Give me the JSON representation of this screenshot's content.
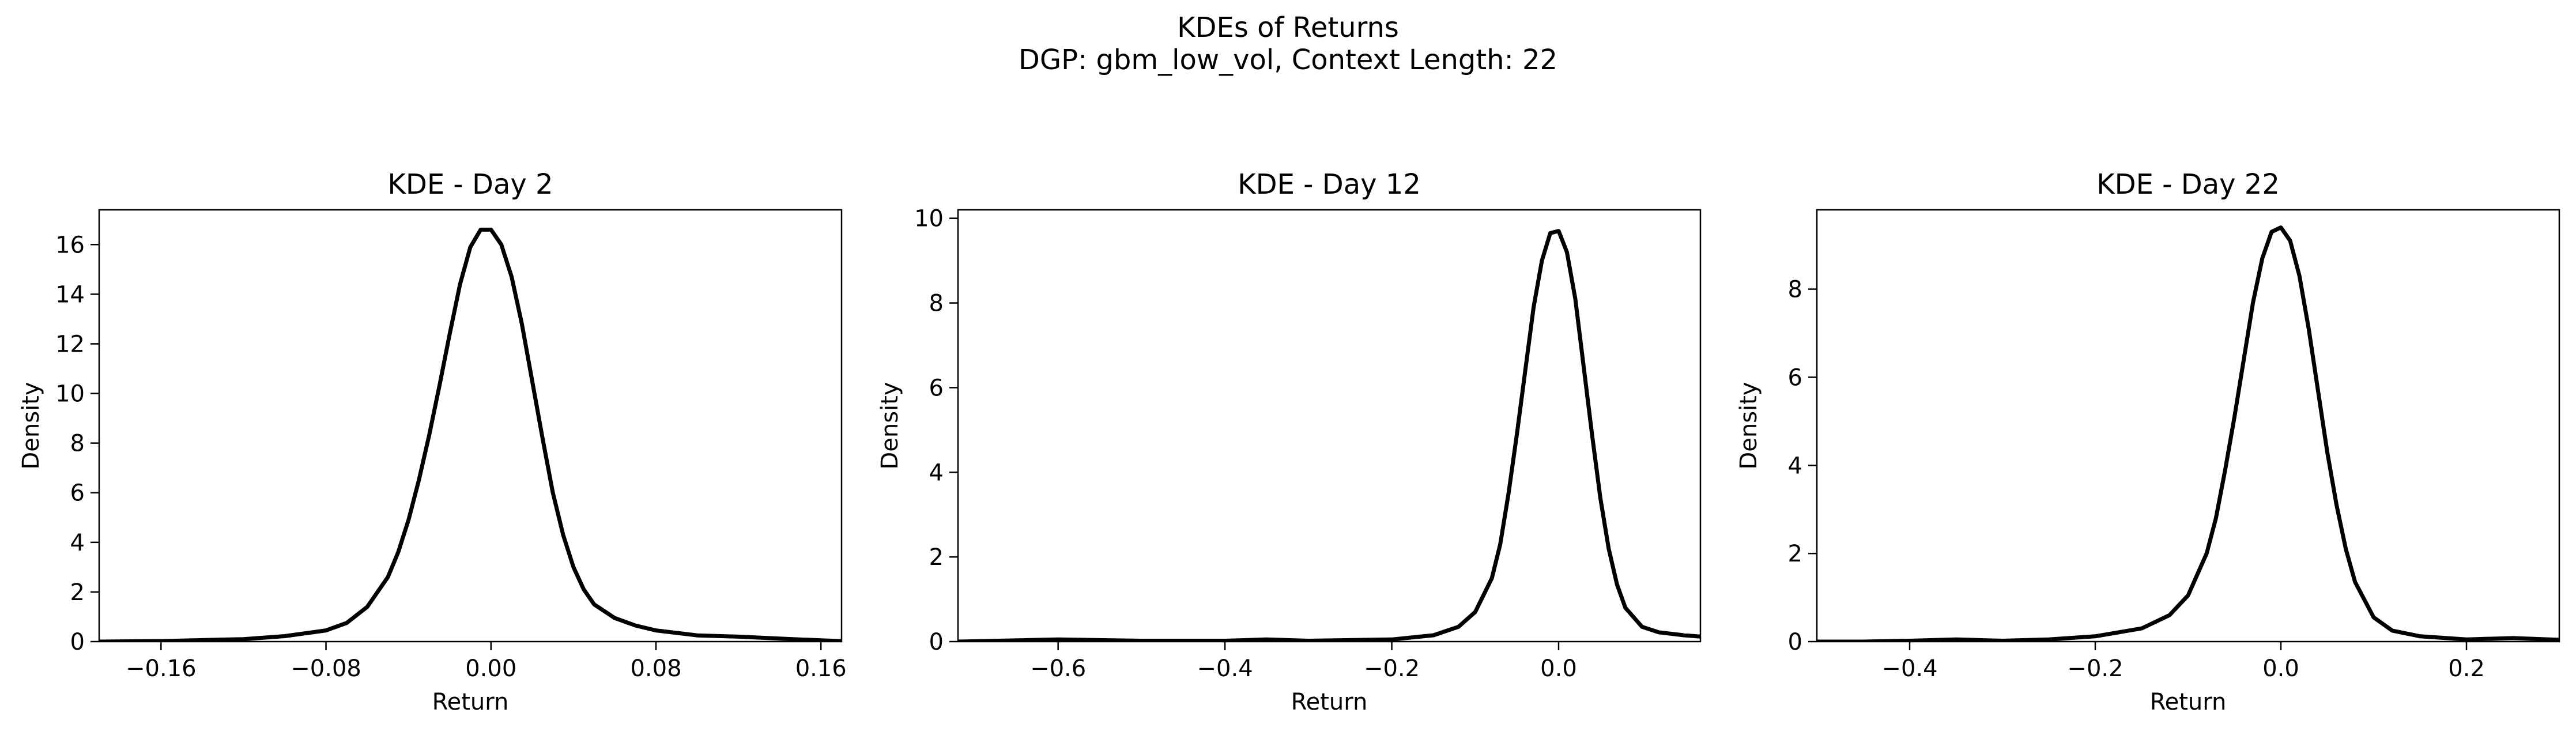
{
  "suptitle": {
    "line1": "KDEs of Returns",
    "line2": "DGP: gbm_low_vol, Context Length: 22"
  },
  "chart_data": [
    {
      "type": "line",
      "title": "KDE - Day 2",
      "xlabel": "Return",
      "ylabel": "Density",
      "xlim": [
        -0.19,
        0.17
      ],
      "ylim": [
        0,
        17.4
      ],
      "xticks": [
        -0.16,
        -0.08,
        0.0,
        0.08,
        0.16
      ],
      "xtick_labels": [
        "−0.16",
        "−0.08",
        "0.00",
        "0.08",
        "0.16"
      ],
      "yticks": [
        0,
        2,
        4,
        6,
        8,
        10,
        12,
        14,
        16
      ],
      "ytick_labels": [
        "0",
        "2",
        "4",
        "6",
        "8",
        "10",
        "12",
        "14",
        "16"
      ],
      "grid": false,
      "series": [
        {
          "color": "#000000",
          "x": [
            -0.19,
            -0.16,
            -0.12,
            -0.1,
            -0.08,
            -0.07,
            -0.06,
            -0.05,
            -0.045,
            -0.04,
            -0.035,
            -0.03,
            -0.025,
            -0.02,
            -0.015,
            -0.01,
            -0.005,
            0.0,
            0.005,
            0.01,
            0.015,
            0.02,
            0.025,
            0.03,
            0.035,
            0.04,
            0.045,
            0.05,
            0.06,
            0.07,
            0.08,
            0.1,
            0.12,
            0.14,
            0.16,
            0.17
          ],
          "y": [
            0.0,
            0.02,
            0.1,
            0.22,
            0.45,
            0.75,
            1.4,
            2.6,
            3.6,
            4.9,
            6.5,
            8.3,
            10.3,
            12.4,
            14.4,
            15.9,
            16.6,
            16.6,
            16.0,
            14.7,
            12.8,
            10.5,
            8.2,
            6.0,
            4.3,
            3.0,
            2.1,
            1.5,
            0.95,
            0.65,
            0.45,
            0.25,
            0.2,
            0.12,
            0.05,
            0.02
          ]
        }
      ]
    },
    {
      "type": "line",
      "title": "KDE - Day 12",
      "xlabel": "Return",
      "ylabel": "Density",
      "xlim": [
        -0.72,
        0.17
      ],
      "ylim": [
        0,
        10.2
      ],
      "xticks": [
        -0.6,
        -0.4,
        -0.2,
        0.0
      ],
      "xtick_labels": [
        "−0.6",
        "−0.4",
        "−0.2",
        "0.0"
      ],
      "yticks": [
        0,
        2,
        4,
        6,
        8,
        10
      ],
      "ytick_labels": [
        "0",
        "2",
        "4",
        "6",
        "8",
        "10"
      ],
      "grid": false,
      "series": [
        {
          "color": "#000000",
          "x": [
            -0.72,
            -0.6,
            -0.5,
            -0.4,
            -0.35,
            -0.3,
            -0.2,
            -0.15,
            -0.12,
            -0.1,
            -0.08,
            -0.07,
            -0.06,
            -0.05,
            -0.04,
            -0.03,
            -0.02,
            -0.01,
            0.0,
            0.01,
            0.02,
            0.03,
            0.04,
            0.05,
            0.06,
            0.07,
            0.08,
            0.1,
            0.12,
            0.15,
            0.17
          ],
          "y": [
            0.0,
            0.05,
            0.02,
            0.02,
            0.05,
            0.02,
            0.05,
            0.15,
            0.35,
            0.7,
            1.5,
            2.3,
            3.5,
            4.9,
            6.4,
            7.9,
            9.0,
            9.65,
            9.7,
            9.2,
            8.1,
            6.5,
            4.9,
            3.4,
            2.2,
            1.35,
            0.8,
            0.35,
            0.22,
            0.15,
            0.12
          ]
        }
      ]
    },
    {
      "type": "line",
      "title": "KDE - Day 22",
      "xlabel": "Return",
      "ylabel": "Density",
      "xlim": [
        -0.5,
        0.3
      ],
      "ylim": [
        0,
        9.8
      ],
      "xticks": [
        -0.4,
        -0.2,
        0.0,
        0.2
      ],
      "xtick_labels": [
        "−0.4",
        "−0.2",
        "0.0",
        "0.2"
      ],
      "yticks": [
        0,
        2,
        4,
        6,
        8
      ],
      "ytick_labels": [
        "0",
        "2",
        "4",
        "6",
        "8"
      ],
      "grid": false,
      "series": [
        {
          "color": "#000000",
          "x": [
            -0.5,
            -0.45,
            -0.4,
            -0.35,
            -0.3,
            -0.25,
            -0.2,
            -0.15,
            -0.12,
            -0.1,
            -0.08,
            -0.07,
            -0.06,
            -0.05,
            -0.04,
            -0.03,
            -0.02,
            -0.01,
            0.0,
            0.01,
            0.02,
            0.03,
            0.04,
            0.05,
            0.06,
            0.07,
            0.08,
            0.1,
            0.12,
            0.15,
            0.2,
            0.25,
            0.3
          ],
          "y": [
            0.0,
            0.0,
            0.02,
            0.05,
            0.02,
            0.05,
            0.12,
            0.3,
            0.6,
            1.05,
            2.0,
            2.8,
            3.9,
            5.1,
            6.4,
            7.7,
            8.7,
            9.3,
            9.4,
            9.1,
            8.3,
            7.1,
            5.7,
            4.3,
            3.1,
            2.1,
            1.35,
            0.55,
            0.25,
            0.12,
            0.05,
            0.08,
            0.04
          ]
        }
      ]
    }
  ]
}
